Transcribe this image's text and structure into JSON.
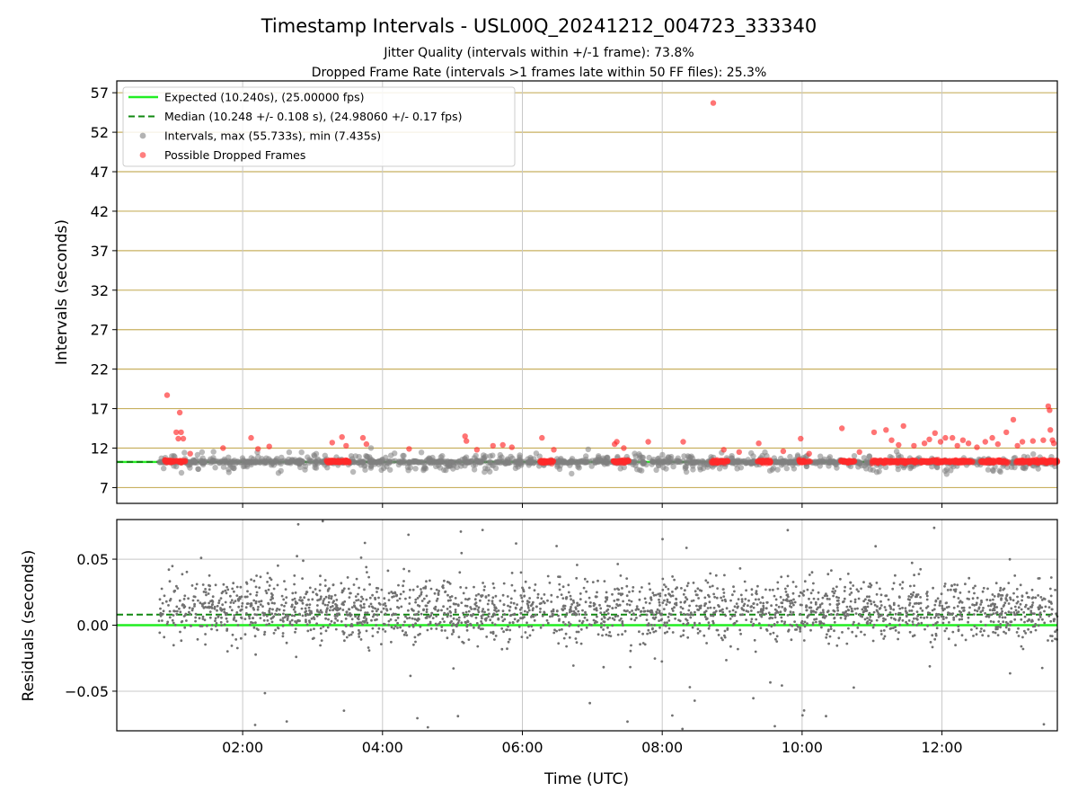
{
  "chart_data": [
    {
      "type": "scatter",
      "title": "Timestamp Intervals - USL00Q_20241212_004723_333340",
      "subtitle_1": "Jitter Quality (intervals within +/-1 frame): 73.8%",
      "subtitle_2": "Dropped Frame Rate (intervals >1 frames late within 50 FF files): 25.3%",
      "ylabel": "Intervals (seconds)",
      "y_ticks": [
        "7",
        "12",
        "17",
        "22",
        "27",
        "32",
        "37",
        "42",
        "47",
        "52",
        "57"
      ],
      "ylim": [
        5.0,
        58.5
      ],
      "xlim": [
        0.2,
        13.65
      ],
      "x_time_range": [
        "00:12",
        "13:39"
      ],
      "grid": true,
      "legend_placement": "upper-left",
      "legend": [
        {
          "label": "Expected (10.240s), (25.00000 fps)",
          "style": "solid-line",
          "color": "#22ee22"
        },
        {
          "label": "Median (10.248 +/- 0.108 s), (24.98060 +/- 0.17 fps)",
          "style": "dashed-line",
          "color": "#118811"
        },
        {
          "label": "Intervals, max (55.733s), min (7.435s)",
          "style": "marker",
          "color": "#808080"
        },
        {
          "label": "Possible Dropped Frames",
          "style": "marker",
          "color": "#ff2a2a"
        }
      ],
      "expected_interval": 10.24,
      "median_interval": 10.248,
      "intervals_max": 55.733,
      "intervals_min": 7.435,
      "first_point": 0.8,
      "series": [
        {
          "name": "Possible Dropped Frames",
          "color": "#ff2a2a",
          "highlight_points": [
            {
              "x": 0.92,
              "y": 18.7
            },
            {
              "x": 1.05,
              "y": 14.0
            },
            {
              "x": 1.12,
              "y": 14.0
            },
            {
              "x": 1.08,
              "y": 13.2
            },
            {
              "x": 1.1,
              "y": 16.5
            },
            {
              "x": 1.15,
              "y": 13.2
            },
            {
              "x": 1.25,
              "y": 11.3
            },
            {
              "x": 1.72,
              "y": 12.0
            },
            {
              "x": 2.12,
              "y": 13.3
            },
            {
              "x": 2.22,
              "y": 11.9
            },
            {
              "x": 2.38,
              "y": 12.2
            },
            {
              "x": 3.28,
              "y": 12.7
            },
            {
              "x": 3.42,
              "y": 13.4
            },
            {
              "x": 3.48,
              "y": 12.3
            },
            {
              "x": 3.72,
              "y": 13.3
            },
            {
              "x": 3.77,
              "y": 12.5
            },
            {
              "x": 4.38,
              "y": 11.9
            },
            {
              "x": 5.18,
              "y": 13.5
            },
            {
              "x": 5.2,
              "y": 12.9
            },
            {
              "x": 5.35,
              "y": 11.8
            },
            {
              "x": 5.58,
              "y": 12.3
            },
            {
              "x": 5.72,
              "y": 12.4
            },
            {
              "x": 5.85,
              "y": 12.1
            },
            {
              "x": 6.28,
              "y": 13.3
            },
            {
              "x": 6.45,
              "y": 11.8
            },
            {
              "x": 7.32,
              "y": 12.5
            },
            {
              "x": 7.35,
              "y": 12.8
            },
            {
              "x": 7.45,
              "y": 12.0
            },
            {
              "x": 7.8,
              "y": 12.8
            },
            {
              "x": 8.3,
              "y": 12.8
            },
            {
              "x": 8.73,
              "y": 55.7
            },
            {
              "x": 8.88,
              "y": 11.8
            },
            {
              "x": 9.1,
              "y": 11.5
            },
            {
              "x": 9.38,
              "y": 12.6
            },
            {
              "x": 9.73,
              "y": 11.6
            },
            {
              "x": 9.98,
              "y": 13.2
            },
            {
              "x": 10.1,
              "y": 11.3
            },
            {
              "x": 10.57,
              "y": 14.5
            },
            {
              "x": 10.82,
              "y": 11.5
            },
            {
              "x": 11.03,
              "y": 14.0
            },
            {
              "x": 11.2,
              "y": 14.3
            },
            {
              "x": 11.28,
              "y": 13.0
            },
            {
              "x": 11.38,
              "y": 12.4
            },
            {
              "x": 11.45,
              "y": 14.8
            },
            {
              "x": 11.6,
              "y": 12.3
            },
            {
              "x": 11.75,
              "y": 12.6
            },
            {
              "x": 11.82,
              "y": 13.1
            },
            {
              "x": 11.9,
              "y": 13.9
            },
            {
              "x": 11.98,
              "y": 12.8
            },
            {
              "x": 12.05,
              "y": 13.3
            },
            {
              "x": 12.15,
              "y": 13.3
            },
            {
              "x": 12.22,
              "y": 12.3
            },
            {
              "x": 12.3,
              "y": 13.0
            },
            {
              "x": 12.38,
              "y": 12.6
            },
            {
              "x": 12.5,
              "y": 12.1
            },
            {
              "x": 12.62,
              "y": 12.8
            },
            {
              "x": 12.72,
              "y": 13.3
            },
            {
              "x": 12.8,
              "y": 12.5
            },
            {
              "x": 12.92,
              "y": 14.0
            },
            {
              "x": 13.02,
              "y": 15.6
            },
            {
              "x": 13.08,
              "y": 12.3
            },
            {
              "x": 13.15,
              "y": 12.8
            },
            {
              "x": 13.3,
              "y": 12.9
            },
            {
              "x": 13.45,
              "y": 13.0
            },
            {
              "x": 13.52,
              "y": 17.3
            },
            {
              "x": 13.54,
              "y": 16.8
            },
            {
              "x": 13.55,
              "y": 14.3
            },
            {
              "x": 13.58,
              "y": 13.0
            },
            {
              "x": 13.6,
              "y": 12.6
            }
          ],
          "dense_band_segments": [
            [
              0.88,
              1.18
            ],
            [
              3.2,
              3.52
            ],
            [
              6.25,
              6.45
            ],
            [
              7.3,
              7.52
            ],
            [
              8.7,
              8.95
            ],
            [
              9.35,
              9.55
            ],
            [
              9.95,
              10.12
            ],
            [
              10.55,
              10.75
            ],
            [
              11.0,
              11.65
            ],
            [
              11.7,
              12.45
            ],
            [
              12.55,
              12.95
            ],
            [
              13.05,
              13.65
            ]
          ],
          "band_y": 10.3
        },
        {
          "name": "Intervals",
          "color": "#808080",
          "y_range": [
            7.435,
            12.5
          ],
          "typical_y": [
            9.0,
            11.5
          ]
        }
      ]
    },
    {
      "type": "scatter",
      "ylabel": "Residuals (seconds)",
      "xlabel": "Time (UTC)",
      "y_ticks": [
        "−0.05",
        "0.00",
        "0.05"
      ],
      "ylim": [
        -0.08,
        0.08
      ],
      "x_ticks": [
        "02:00",
        "04:00",
        "06:00",
        "08:00",
        "10:00",
        "12:00"
      ],
      "grid": true,
      "expected_residual": 0.0,
      "median_residual": 0.008,
      "series": [
        {
          "name": "Residuals",
          "color": "#707070",
          "range": [
            -0.08,
            0.08
          ],
          "typical_range": [
            -0.02,
            0.045
          ]
        }
      ]
    }
  ]
}
